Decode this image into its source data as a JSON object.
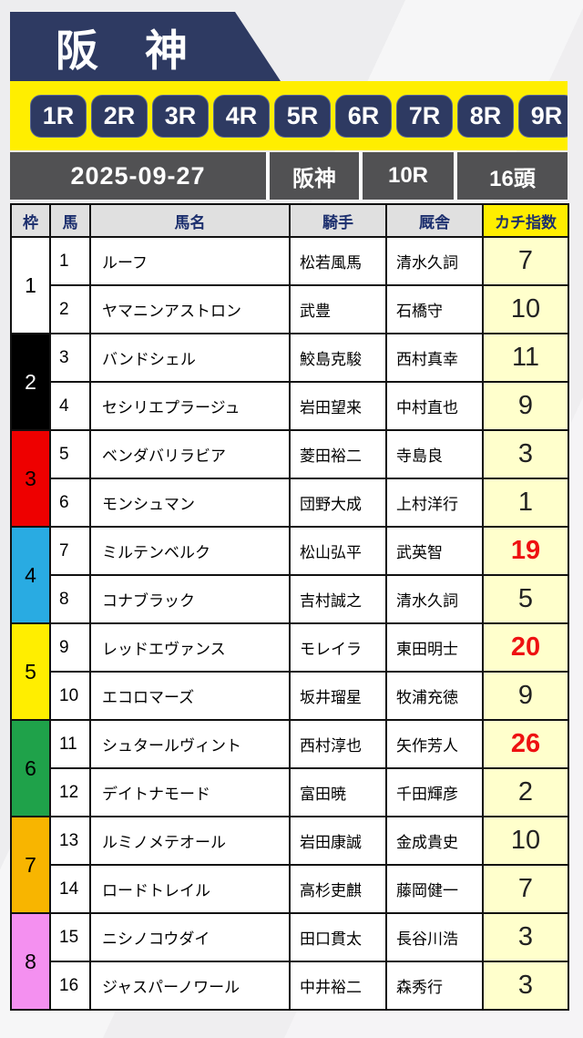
{
  "header": {
    "track_name": "阪　神",
    "bg_color": "#2e3a62"
  },
  "race_tabs": {
    "bar_color": "#ffee00",
    "tab_color": "#2e3a62",
    "items": [
      "1R",
      "2R",
      "3R",
      "4R",
      "5R",
      "6R",
      "7R",
      "8R",
      "9R"
    ]
  },
  "info_bar": {
    "bg_color": "#515153",
    "date": "2025-09-27",
    "track": "阪神",
    "race": "10R",
    "head_count": "16頭"
  },
  "table": {
    "header_bg": "#e0e0e0",
    "index_header_bg": "#ffee00",
    "index_cell_bg": "#ffffcc",
    "highlight_color": "#ee1111",
    "columns": {
      "frame": "枠",
      "horse_no": "馬",
      "horse_name": "馬名",
      "jockey": "騎手",
      "stable": "厩舎",
      "index": "カチ指数"
    },
    "frames": [
      {
        "no": "1",
        "color": "#ffffff",
        "text_color": "#000000"
      },
      {
        "no": "2",
        "color": "#000000",
        "text_color": "#ffffff"
      },
      {
        "no": "3",
        "color": "#ee0000",
        "text_color": "#000000"
      },
      {
        "no": "4",
        "color": "#29abe2",
        "text_color": "#000000"
      },
      {
        "no": "5",
        "color": "#ffee00",
        "text_color": "#000000"
      },
      {
        "no": "6",
        "color": "#1fa24a",
        "text_color": "#000000"
      },
      {
        "no": "7",
        "color": "#f8b500",
        "text_color": "#000000"
      },
      {
        "no": "8",
        "color": "#f490f0",
        "text_color": "#000000"
      }
    ],
    "rows": [
      {
        "no": "1",
        "name": "ルーフ",
        "jockey": "松若風馬",
        "stable": "清水久詞",
        "index": "7",
        "hot": false
      },
      {
        "no": "2",
        "name": "ヤマニンアストロン",
        "jockey": "武豊",
        "stable": "石橋守",
        "index": "10",
        "hot": false
      },
      {
        "no": "3",
        "name": "バンドシェル",
        "jockey": "鮫島克駿",
        "stable": "西村真幸",
        "index": "11",
        "hot": false
      },
      {
        "no": "4",
        "name": "セシリエプラージュ",
        "jockey": "岩田望来",
        "stable": "中村直也",
        "index": "9",
        "hot": false
      },
      {
        "no": "5",
        "name": "ベンダバリラビア",
        "jockey": "菱田裕二",
        "stable": "寺島良",
        "index": "3",
        "hot": false
      },
      {
        "no": "6",
        "name": "モンシュマン",
        "jockey": "団野大成",
        "stable": "上村洋行",
        "index": "1",
        "hot": false
      },
      {
        "no": "7",
        "name": "ミルテンベルク",
        "jockey": "松山弘平",
        "stable": "武英智",
        "index": "19",
        "hot": true
      },
      {
        "no": "8",
        "name": "コナブラック",
        "jockey": "吉村誠之",
        "stable": "清水久詞",
        "index": "5",
        "hot": false
      },
      {
        "no": "9",
        "name": "レッドエヴァンス",
        "jockey": "モレイラ",
        "stable": "東田明士",
        "index": "20",
        "hot": true
      },
      {
        "no": "10",
        "name": "エコロマーズ",
        "jockey": "坂井瑠星",
        "stable": "牧浦充徳",
        "index": "9",
        "hot": false
      },
      {
        "no": "11",
        "name": "シュタールヴィント",
        "jockey": "西村淳也",
        "stable": "矢作芳人",
        "index": "26",
        "hot": true
      },
      {
        "no": "12",
        "name": "デイトナモード",
        "jockey": "富田暁",
        "stable": "千田輝彦",
        "index": "2",
        "hot": false
      },
      {
        "no": "13",
        "name": "ルミノメテオール",
        "jockey": "岩田康誠",
        "stable": "金成貴史",
        "index": "10",
        "hot": false
      },
      {
        "no": "14",
        "name": "ロードトレイル",
        "jockey": "高杉吏麒",
        "stable": "藤岡健一",
        "index": "7",
        "hot": false
      },
      {
        "no": "15",
        "name": "ニシノコウダイ",
        "jockey": "田口貫太",
        "stable": "長谷川浩",
        "index": "3",
        "hot": false
      },
      {
        "no": "16",
        "name": "ジャスパーノワール",
        "jockey": "中井裕二",
        "stable": "森秀行",
        "index": "3",
        "hot": false
      }
    ]
  }
}
